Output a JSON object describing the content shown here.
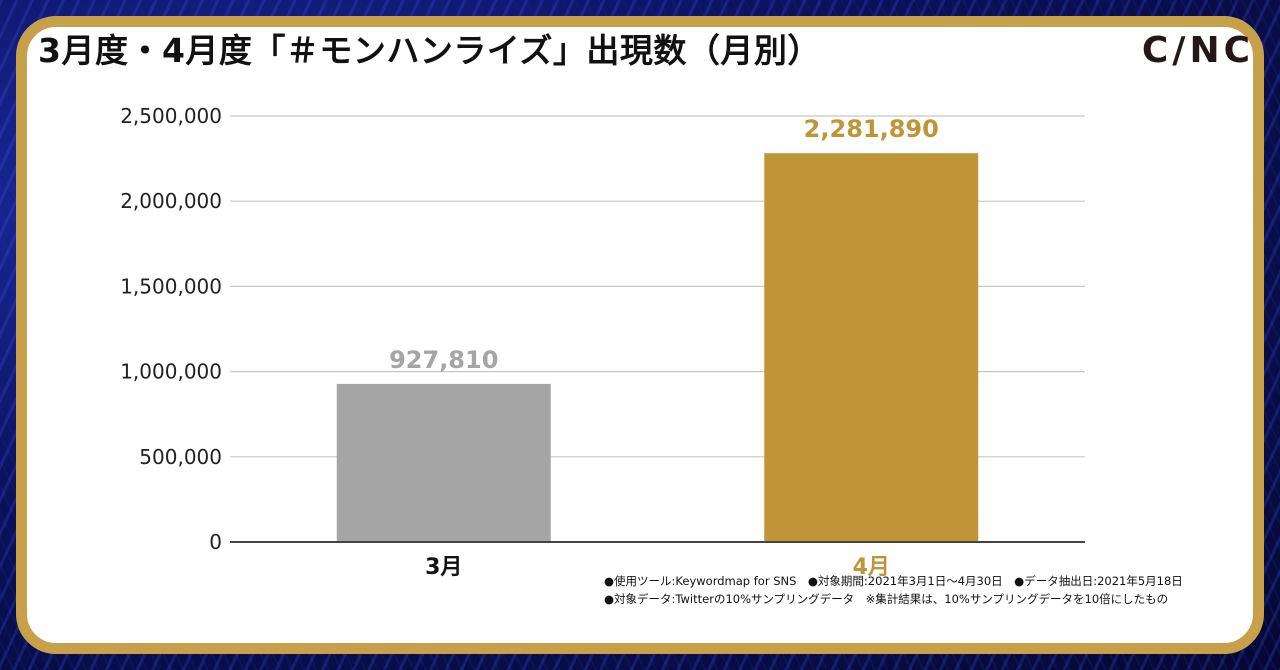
{
  "header": {
    "title": "3月度・4月度「＃モンハンライズ」出現数（月別）",
    "logo_text": "C/NC"
  },
  "colors": {
    "frame": "#c9a04a",
    "bar_march": "#a5a5a5",
    "bar_april": "#bf9537",
    "label_march": "#a5a5a5",
    "label_april": "#bf9537"
  },
  "chart_data": {
    "type": "bar",
    "categories": [
      "3月",
      "4月"
    ],
    "values": [
      927810,
      2281890
    ],
    "value_labels": [
      "927,810",
      "2,281,890"
    ],
    "ylim": [
      0,
      2500000
    ],
    "yticks": [
      0,
      500000,
      1000000,
      1500000,
      2000000,
      2500000
    ],
    "ytick_labels": [
      "0",
      "500,000",
      "1,000,000",
      "1,500,000",
      "2,000,000",
      "2,500,000"
    ],
    "grid": true
  },
  "footer": {
    "note_line1": "●使用ツール:Keywordmap for SNS　●対象期間:2021年3月1日〜4月30日　●データ抽出日:2021年5月18日",
    "note_line2": "●対象データ:Twitterの10%サンプリングデータ　※集計結果は、10%サンプリングデータを10倍にしたもの"
  }
}
